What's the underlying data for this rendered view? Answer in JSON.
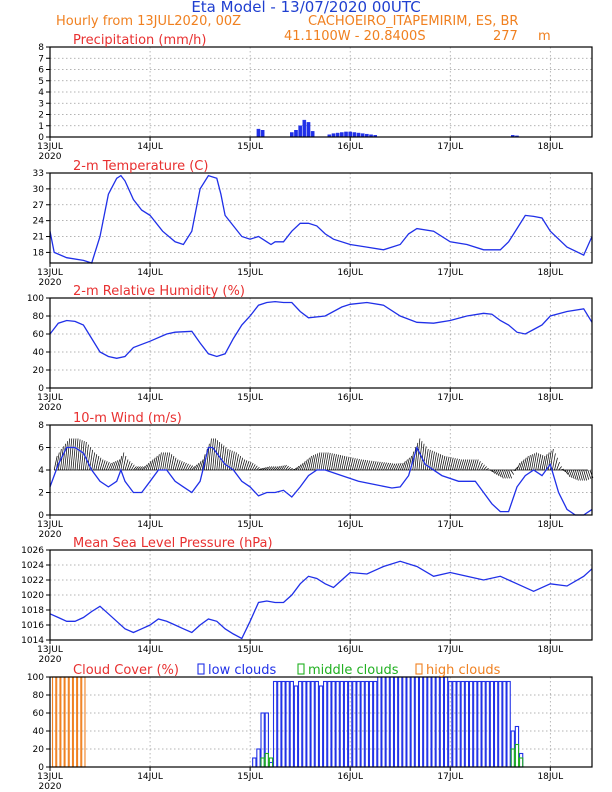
{
  "header": {
    "title": "Eta Model - 13/07/2020 00UTC",
    "line2_left": "Hourly from 13JUL2020, 00Z",
    "line2_right": "CACHOEIRO_ITAPEMIRIM, ES, BR",
    "coords": "41.1100W - 20.8400S",
    "elevation": "277",
    "elevation_unit": "m"
  },
  "colors": {
    "title": "#1f3fd0",
    "subtitle": "#f08020",
    "panel_title": "#e83030",
    "series": "#2030e8",
    "low_clouds": "#2030e8",
    "middle_clouds": "#20b020",
    "high_clouds": "#f08020"
  },
  "x_axis": {
    "start_hour": 0,
    "end_hour": 130,
    "ticks": [
      {
        "hour": 0,
        "label": "13JUL",
        "sub": "2020"
      },
      {
        "hour": 24,
        "label": "14JUL",
        "sub": ""
      },
      {
        "hour": 48,
        "label": "15JUL",
        "sub": ""
      },
      {
        "hour": 72,
        "label": "16JUL",
        "sub": ""
      },
      {
        "hour": 96,
        "label": "17JUL",
        "sub": ""
      },
      {
        "hour": 120,
        "label": "18JUL",
        "sub": ""
      }
    ]
  },
  "chart_data": [
    {
      "type": "bar",
      "title": "Precipitation (mm/h)",
      "ylim": [
        0,
        8
      ],
      "yticks": [
        "0",
        "1",
        "2",
        "3",
        "4",
        "5",
        "6",
        "7",
        "8"
      ],
      "bars": [
        {
          "hour": 50,
          "value": 0.7
        },
        {
          "hour": 51,
          "value": 0.6
        },
        {
          "hour": 58,
          "value": 0.4
        },
        {
          "hour": 59,
          "value": 0.6
        },
        {
          "hour": 60,
          "value": 1.0
        },
        {
          "hour": 61,
          "value": 1.5
        },
        {
          "hour": 62,
          "value": 1.3
        },
        {
          "hour": 63,
          "value": 0.5
        },
        {
          "hour": 67,
          "value": 0.2
        },
        {
          "hour": 68,
          "value": 0.3
        },
        {
          "hour": 69,
          "value": 0.35
        },
        {
          "hour": 70,
          "value": 0.4
        },
        {
          "hour": 71,
          "value": 0.45
        },
        {
          "hour": 72,
          "value": 0.45
        },
        {
          "hour": 73,
          "value": 0.4
        },
        {
          "hour": 74,
          "value": 0.35
        },
        {
          "hour": 75,
          "value": 0.3
        },
        {
          "hour": 76,
          "value": 0.25
        },
        {
          "hour": 77,
          "value": 0.2
        },
        {
          "hour": 78,
          "value": 0.15
        },
        {
          "hour": 111,
          "value": 0.15
        },
        {
          "hour": 112,
          "value": 0.1
        }
      ]
    },
    {
      "type": "line",
      "title": "2-m Temperature (C)",
      "ylim": [
        16,
        33
      ],
      "yticks": [
        "18",
        "21",
        "24",
        "27",
        "30",
        "33"
      ],
      "x": [
        0,
        1,
        4,
        8,
        10,
        12,
        14,
        16,
        17,
        18,
        20,
        22,
        24,
        27,
        30,
        32,
        34,
        36,
        38,
        40,
        41,
        42,
        44,
        46,
        48,
        50,
        52,
        53,
        54,
        56,
        58,
        60,
        62,
        64,
        66,
        68,
        72,
        76,
        80,
        84,
        86,
        88,
        92,
        96,
        100,
        104,
        108,
        110,
        112,
        114,
        116,
        118,
        120,
        124,
        128,
        130
      ],
      "y": [
        22,
        18,
        17,
        16.5,
        16,
        21,
        29,
        32,
        32.5,
        31.5,
        28,
        26,
        25,
        22,
        20,
        19.5,
        22,
        30,
        32.5,
        32,
        29,
        25,
        23,
        21,
        20.5,
        21,
        20,
        19.5,
        20,
        20,
        22,
        23.5,
        23.5,
        23,
        21.5,
        20.5,
        19.5,
        19,
        18.5,
        19.5,
        21.5,
        22.5,
        22,
        20,
        19.5,
        18.5,
        18.5,
        20,
        22.5,
        25,
        24.8,
        24.5,
        22,
        19,
        17.5,
        21
      ]
    },
    {
      "type": "line",
      "title": "2-m Relative Humidity (%)",
      "ylim": [
        0,
        100
      ],
      "yticks": [
        "0",
        "20",
        "40",
        "60",
        "80",
        "100"
      ],
      "x": [
        0,
        2,
        4,
        6,
        8,
        10,
        12,
        14,
        16,
        18,
        20,
        24,
        28,
        30,
        34,
        36,
        38,
        40,
        42,
        44,
        46,
        48,
        50,
        52,
        54,
        56,
        58,
        60,
        62,
        66,
        70,
        72,
        76,
        80,
        84,
        88,
        92,
        96,
        100,
        104,
        106,
        108,
        110,
        112,
        114,
        116,
        118,
        120,
        124,
        128,
        130
      ],
      "y": [
        60,
        72,
        75,
        74,
        70,
        55,
        40,
        35,
        33,
        35,
        45,
        52,
        60,
        62,
        63,
        50,
        38,
        35,
        38,
        55,
        70,
        80,
        92,
        95,
        96,
        95,
        95,
        85,
        78,
        80,
        90,
        93,
        95,
        92,
        80,
        73,
        72,
        75,
        80,
        83,
        82,
        75,
        70,
        62,
        60,
        65,
        70,
        80,
        85,
        88,
        73
      ]
    },
    {
      "type": "line",
      "title": "10-m Wind (m/s)",
      "ylim": [
        0,
        8
      ],
      "yticks": [
        "0",
        "2",
        "4",
        "6",
        "8"
      ],
      "x": [
        0,
        2,
        4,
        6,
        8,
        10,
        12,
        14,
        16,
        17,
        18,
        20,
        22,
        24,
        26,
        28,
        30,
        32,
        34,
        36,
        38,
        39,
        40,
        42,
        44,
        46,
        48,
        50,
        52,
        54,
        56,
        58,
        60,
        62,
        64,
        66,
        70,
        74,
        78,
        82,
        84,
        86,
        88,
        90,
        94,
        98,
        100,
        102,
        104,
        106,
        108,
        110,
        112,
        114,
        116,
        118,
        120,
        122,
        124,
        126,
        128,
        130
      ],
      "y": [
        2.5,
        4.5,
        6,
        6,
        5.5,
        4,
        3,
        2.5,
        3,
        4,
        3,
        2,
        2,
        3,
        4,
        4,
        3,
        2.5,
        2,
        3,
        6,
        6,
        5.5,
        4.5,
        4,
        3,
        2.5,
        1.7,
        2,
        2,
        2.2,
        1.6,
        2.5,
        3.5,
        4,
        4,
        3.5,
        3,
        2.7,
        2.4,
        2.5,
        3.5,
        6,
        4.5,
        3.5,
        3,
        3,
        3,
        2,
        1,
        0.3,
        0.3,
        2.5,
        3.5,
        4,
        3.5,
        4.5,
        2,
        0.5,
        0,
        0,
        0.5
      ]
    },
    {
      "type": "line",
      "title": "Mean Sea Level Pressure (hPa)",
      "ylim": [
        1014,
        1026
      ],
      "yticks": [
        "1014",
        "1016",
        "1018",
        "1020",
        "1022",
        "1024",
        "1026"
      ],
      "x": [
        0,
        2,
        4,
        6,
        8,
        10,
        12,
        14,
        16,
        18,
        20,
        22,
        24,
        26,
        28,
        30,
        32,
        34,
        36,
        38,
        40,
        42,
        44,
        46,
        48,
        50,
        52,
        54,
        56,
        58,
        60,
        62,
        64,
        66,
        68,
        70,
        72,
        76,
        80,
        84,
        88,
        92,
        96,
        100,
        104,
        108,
        112,
        116,
        120,
        124,
        128,
        130
      ],
      "y": [
        1017.5,
        1017,
        1016.5,
        1016.5,
        1017,
        1017.8,
        1018.5,
        1017.5,
        1016.5,
        1015.5,
        1015,
        1015.5,
        1016,
        1016.8,
        1016.5,
        1016,
        1015.5,
        1015,
        1016,
        1016.8,
        1016.5,
        1015.5,
        1014.8,
        1014.2,
        1016.5,
        1019,
        1019.2,
        1019,
        1019,
        1020,
        1021.5,
        1022.5,
        1022.2,
        1021.5,
        1021,
        1022,
        1023,
        1022.8,
        1023.8,
        1024.5,
        1023.8,
        1022.5,
        1023,
        1022.5,
        1022,
        1022.5,
        1021.5,
        1020.5,
        1021.5,
        1021.2,
        1022.5,
        1023.5
      ]
    },
    {
      "type": "bar",
      "title": "Cloud Cover (%)",
      "ylim": [
        0,
        100
      ],
      "yticks": [
        "0",
        "20",
        "40",
        "60",
        "80",
        "100"
      ],
      "legend": [
        {
          "key": "low",
          "label": "low clouds"
        },
        {
          "key": "middle",
          "label": "middle clouds"
        },
        {
          "key": "high",
          "label": "high clouds"
        }
      ],
      "series": [
        {
          "name": "low clouds",
          "key": "low",
          "hours": [
            49,
            50,
            51,
            52,
            53,
            54,
            55,
            56,
            57,
            58,
            59,
            60,
            61,
            62,
            63,
            64,
            65,
            66,
            67,
            68,
            69,
            70,
            71,
            72,
            73,
            74,
            75,
            76,
            77,
            78,
            79,
            80,
            81,
            82,
            83,
            84,
            85,
            86,
            87,
            88,
            89,
            90,
            91,
            92,
            93,
            94,
            95,
            96,
            97,
            98,
            99,
            100,
            101,
            102,
            103,
            104,
            105,
            106,
            107,
            108,
            109,
            110,
            111,
            112,
            113
          ],
          "values": [
            10,
            20,
            60,
            60,
            5,
            95,
            95,
            95,
            95,
            95,
            90,
            95,
            95,
            95,
            95,
            95,
            90,
            95,
            95,
            95,
            95,
            95,
            95,
            95,
            95,
            95,
            95,
            95,
            95,
            95,
            100,
            100,
            100,
            100,
            100,
            100,
            100,
            100,
            100,
            100,
            100,
            100,
            100,
            100,
            100,
            100,
            100,
            95,
            95,
            95,
            95,
            95,
            95,
            95,
            95,
            95,
            95,
            95,
            95,
            95,
            95,
            95,
            40,
            45,
            15
          ]
        },
        {
          "name": "middle clouds",
          "key": "middle",
          "hours": [
            51,
            52,
            53,
            111,
            112,
            113
          ],
          "values": [
            10,
            15,
            10,
            20,
            25,
            10
          ]
        },
        {
          "name": "high clouds",
          "key": "high",
          "hours": [
            1,
            2,
            3,
            4,
            5,
            6,
            7,
            8
          ],
          "values": [
            100,
            100,
            100,
            100,
            100,
            100,
            100,
            100
          ]
        }
      ]
    }
  ]
}
